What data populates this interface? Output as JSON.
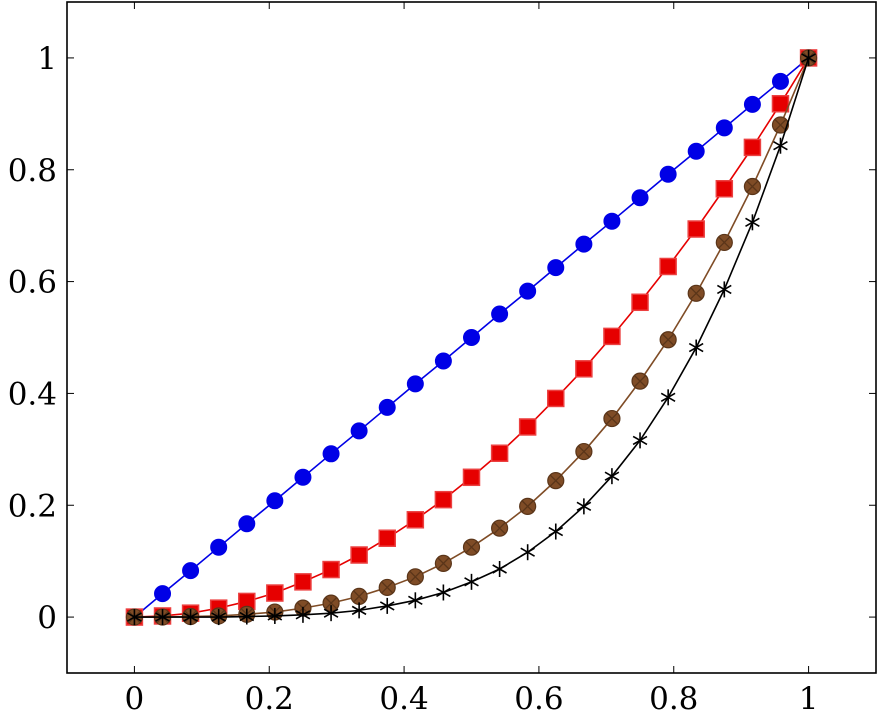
{
  "chart_data": {
    "type": "line",
    "title": "",
    "xlabel": "",
    "ylabel": "",
    "xlim": [
      -0.1,
      1.1
    ],
    "ylim": [
      -0.1,
      1.1
    ],
    "grid": false,
    "legend": "none",
    "x_ticks": [
      0,
      0.2,
      0.4,
      0.6,
      0.8,
      1
    ],
    "x_tick_labels": [
      "0",
      "0.2",
      "0.4",
      "0.6",
      "0.8",
      "1"
    ],
    "y_ticks": [
      0,
      0.2,
      0.4,
      0.6,
      0.8,
      1
    ],
    "y_tick_labels": [
      "0",
      "0.2",
      "0.4",
      "0.6",
      "0.8",
      "1"
    ],
    "x": [
      0,
      0.0417,
      0.0833,
      0.125,
      0.1667,
      0.2083,
      0.25,
      0.2917,
      0.3333,
      0.375,
      0.4167,
      0.4583,
      0.5,
      0.5417,
      0.5833,
      0.625,
      0.6667,
      0.7083,
      0.75,
      0.7917,
      0.8333,
      0.875,
      0.9167,
      0.9583,
      1
    ],
    "series": [
      {
        "color": "#0000e6",
        "marker": "circle",
        "values": [
          0,
          0.042,
          0.083,
          0.125,
          0.167,
          0.208,
          0.25,
          0.292,
          0.333,
          0.375,
          0.417,
          0.458,
          0.5,
          0.542,
          0.583,
          0.625,
          0.667,
          0.708,
          0.75,
          0.792,
          0.833,
          0.875,
          0.917,
          0.958,
          1
        ]
      },
      {
        "color": "#e60000",
        "marker": "square",
        "values": [
          0,
          0.002,
          0.007,
          0.016,
          0.028,
          0.043,
          0.063,
          0.085,
          0.111,
          0.141,
          0.174,
          0.21,
          0.25,
          0.293,
          0.34,
          0.391,
          0.444,
          0.502,
          0.563,
          0.627,
          0.694,
          0.766,
          0.84,
          0.918,
          1
        ]
      },
      {
        "color": "#7f4c26",
        "marker": "otimes",
        "values": [
          0,
          0,
          0.001,
          0.002,
          0.005,
          0.009,
          0.016,
          0.025,
          0.037,
          0.053,
          0.072,
          0.096,
          0.125,
          0.159,
          0.198,
          0.244,
          0.296,
          0.355,
          0.422,
          0.496,
          0.579,
          0.67,
          0.77,
          0.88,
          1
        ]
      },
      {
        "color": "#000000",
        "marker": "star",
        "values": [
          0,
          0,
          0,
          0,
          0.001,
          0.002,
          0.004,
          0.007,
          0.012,
          0.02,
          0.03,
          0.044,
          0.063,
          0.086,
          0.116,
          0.153,
          0.198,
          0.252,
          0.316,
          0.393,
          0.482,
          0.586,
          0.706,
          0.843,
          1
        ]
      }
    ]
  }
}
